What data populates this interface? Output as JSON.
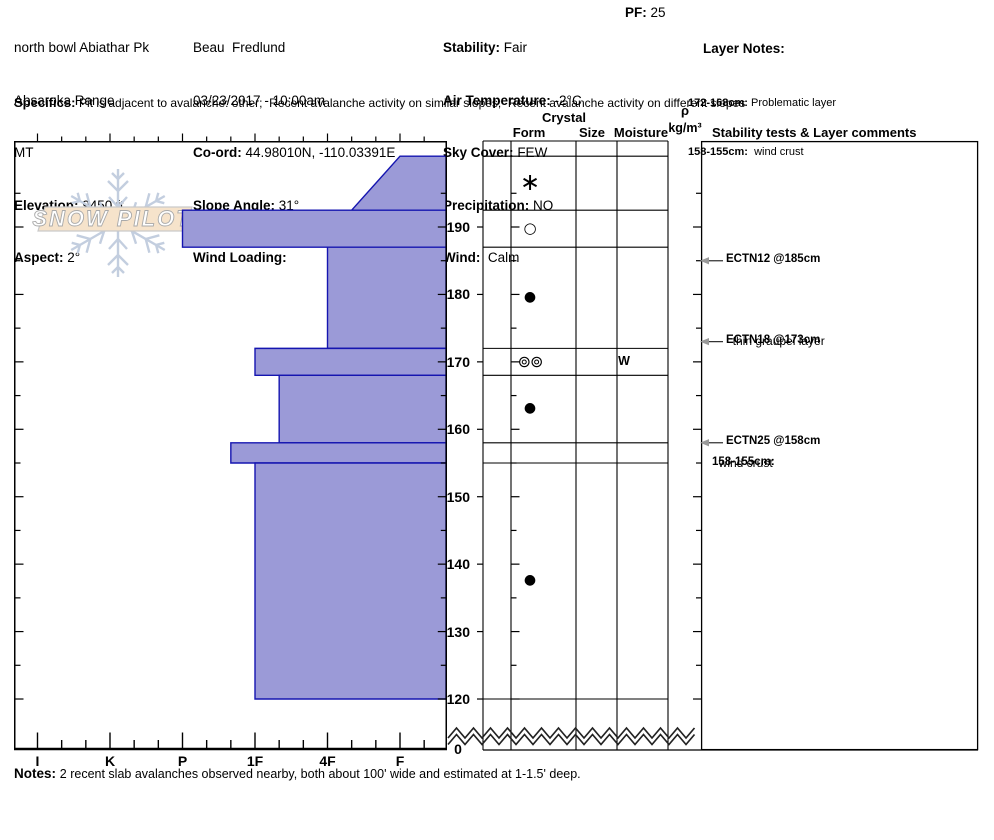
{
  "header": {
    "location": {
      "line1": "north bowl Abiathar Pk",
      "line2": "Absaroka Range",
      "line3": "MT",
      "elevation_label": "Elevation:",
      "elevation": "9450 ft",
      "aspect_label": "Aspect:",
      "aspect": "2°"
    },
    "observer": {
      "name": "Beau  Fredlund",
      "datetime": "03/23/2017 - 10:00am",
      "coord_label": "Co-ord:",
      "coord": "44.98010N, -110.03391E",
      "slope_angle_label": "Slope Angle:",
      "slope_angle": "31°",
      "wind_loading_label": "Wind Loading:",
      "wind_loading": ""
    },
    "conditions": {
      "stability_label": "Stability:",
      "stability": "Fair",
      "air_temp_label": "Air Temperature:",
      "air_temp": "-2°C",
      "sky_label": "Sky Cover:",
      "sky": "FEW",
      "precip_label": "Precipitation:",
      "precip": "NO",
      "wind_label": "Wind:",
      "wind": "Calm"
    },
    "pf_label": "PF:",
    "pf": "25",
    "layer_notes": {
      "title": "Layer Notes:",
      "notes": [
        {
          "range": "172-168cm:",
          "text": "Problematic layer"
        },
        {
          "range": "158-155cm:",
          "text": "wind crust"
        }
      ]
    },
    "specifics_label": "Specifics:",
    "specifics": "Pit is adjacent to avalanche: other;  Recent avalanche activity on similar slopes;  Recent avalanche activity on different slopes"
  },
  "logo": {
    "text": "SNOW PILOT"
  },
  "chart_data": {
    "type": "bar",
    "subtype": "snow-profile-hardness",
    "hardness_axis": {
      "labels": [
        "I",
        "K",
        "P",
        "1F",
        "4F",
        "F"
      ]
    },
    "depth_axis": {
      "unit": "cm",
      "major_ticks": [
        190,
        180,
        170,
        160,
        150,
        140,
        130,
        120
      ],
      "minor_step": 5,
      "break_label": "0",
      "profile_truncated_at_cm": 120
    },
    "column_headers": {
      "crystal": "Crystal",
      "form": "Form",
      "size": "Size",
      "moisture": "Moisture",
      "rho": "ρ",
      "rho_unit": "kg/m³",
      "comments": "Stability tests & Layer comments"
    },
    "layers": [
      {
        "top_cm": 200.5,
        "bottom_cm": 192.5,
        "hardness_top": "F",
        "hardness_bottom": "4F-",
        "grain_symbol": "∗",
        "grain_icon": "asterisk-new-snow",
        "moisture": ""
      },
      {
        "top_cm": 192.5,
        "bottom_cm": 187,
        "hardness_top": "P",
        "hardness_bottom": "P",
        "grain_symbol": "○",
        "grain_icon": "open-circle",
        "moisture": ""
      },
      {
        "top_cm": 187,
        "bottom_cm": 172,
        "hardness_top": "4F",
        "hardness_bottom": "4F",
        "grain_symbol": "●",
        "grain_icon": "filled-circle",
        "moisture": ""
      },
      {
        "top_cm": 172,
        "bottom_cm": 168,
        "hardness_top": "1F",
        "hardness_bottom": "1F",
        "grain_symbol": "⊚⊚",
        "grain_icon": "double-circled-graupel",
        "moisture": "W"
      },
      {
        "top_cm": 168,
        "bottom_cm": 158,
        "hardness_top": "1F-",
        "hardness_bottom": "1F-",
        "grain_symbol": "●",
        "grain_icon": "filled-circle",
        "moisture": ""
      },
      {
        "top_cm": 158,
        "bottom_cm": 155,
        "hardness_top": "1F+",
        "hardness_bottom": "1F+",
        "grain_symbol": "",
        "grain_icon": "none",
        "moisture": ""
      },
      {
        "top_cm": 155,
        "bottom_cm": 120,
        "hardness_top": "1F",
        "hardness_bottom": "1F",
        "grain_symbol": "●",
        "grain_icon": "filled-circle",
        "moisture": ""
      }
    ],
    "tests": [
      {
        "label": "ECTN12 @185cm",
        "comment": "",
        "depth_cm": 185,
        "arrow": true
      },
      {
        "label": "ECTN18 @173cm",
        "comment": "thin graupel layer",
        "depth_cm": 173,
        "arrow": true
      },
      {
        "label": "ECTN25 @158cm",
        "comment": "",
        "depth_cm": 158,
        "arrow": true
      },
      {
        "label": "158-155cm:",
        "comment": "wind crust",
        "depth_cm": 155,
        "arrow": false
      }
    ]
  },
  "notes_label": "Notes:",
  "notes": "2 recent slab avalanches observed nearby, both about 100' wide and estimated at 1-1.5' deep.",
  "colors": {
    "layer_fill": "#9b9ad7",
    "layer_border": "#1515b0",
    "logo_banner_fill": "#f6e3cb",
    "logo_banner_border": "#c9c9c9",
    "logo_text": "#ffffff",
    "snowflake": "#c3cedf",
    "arrow_head": "#999999"
  }
}
